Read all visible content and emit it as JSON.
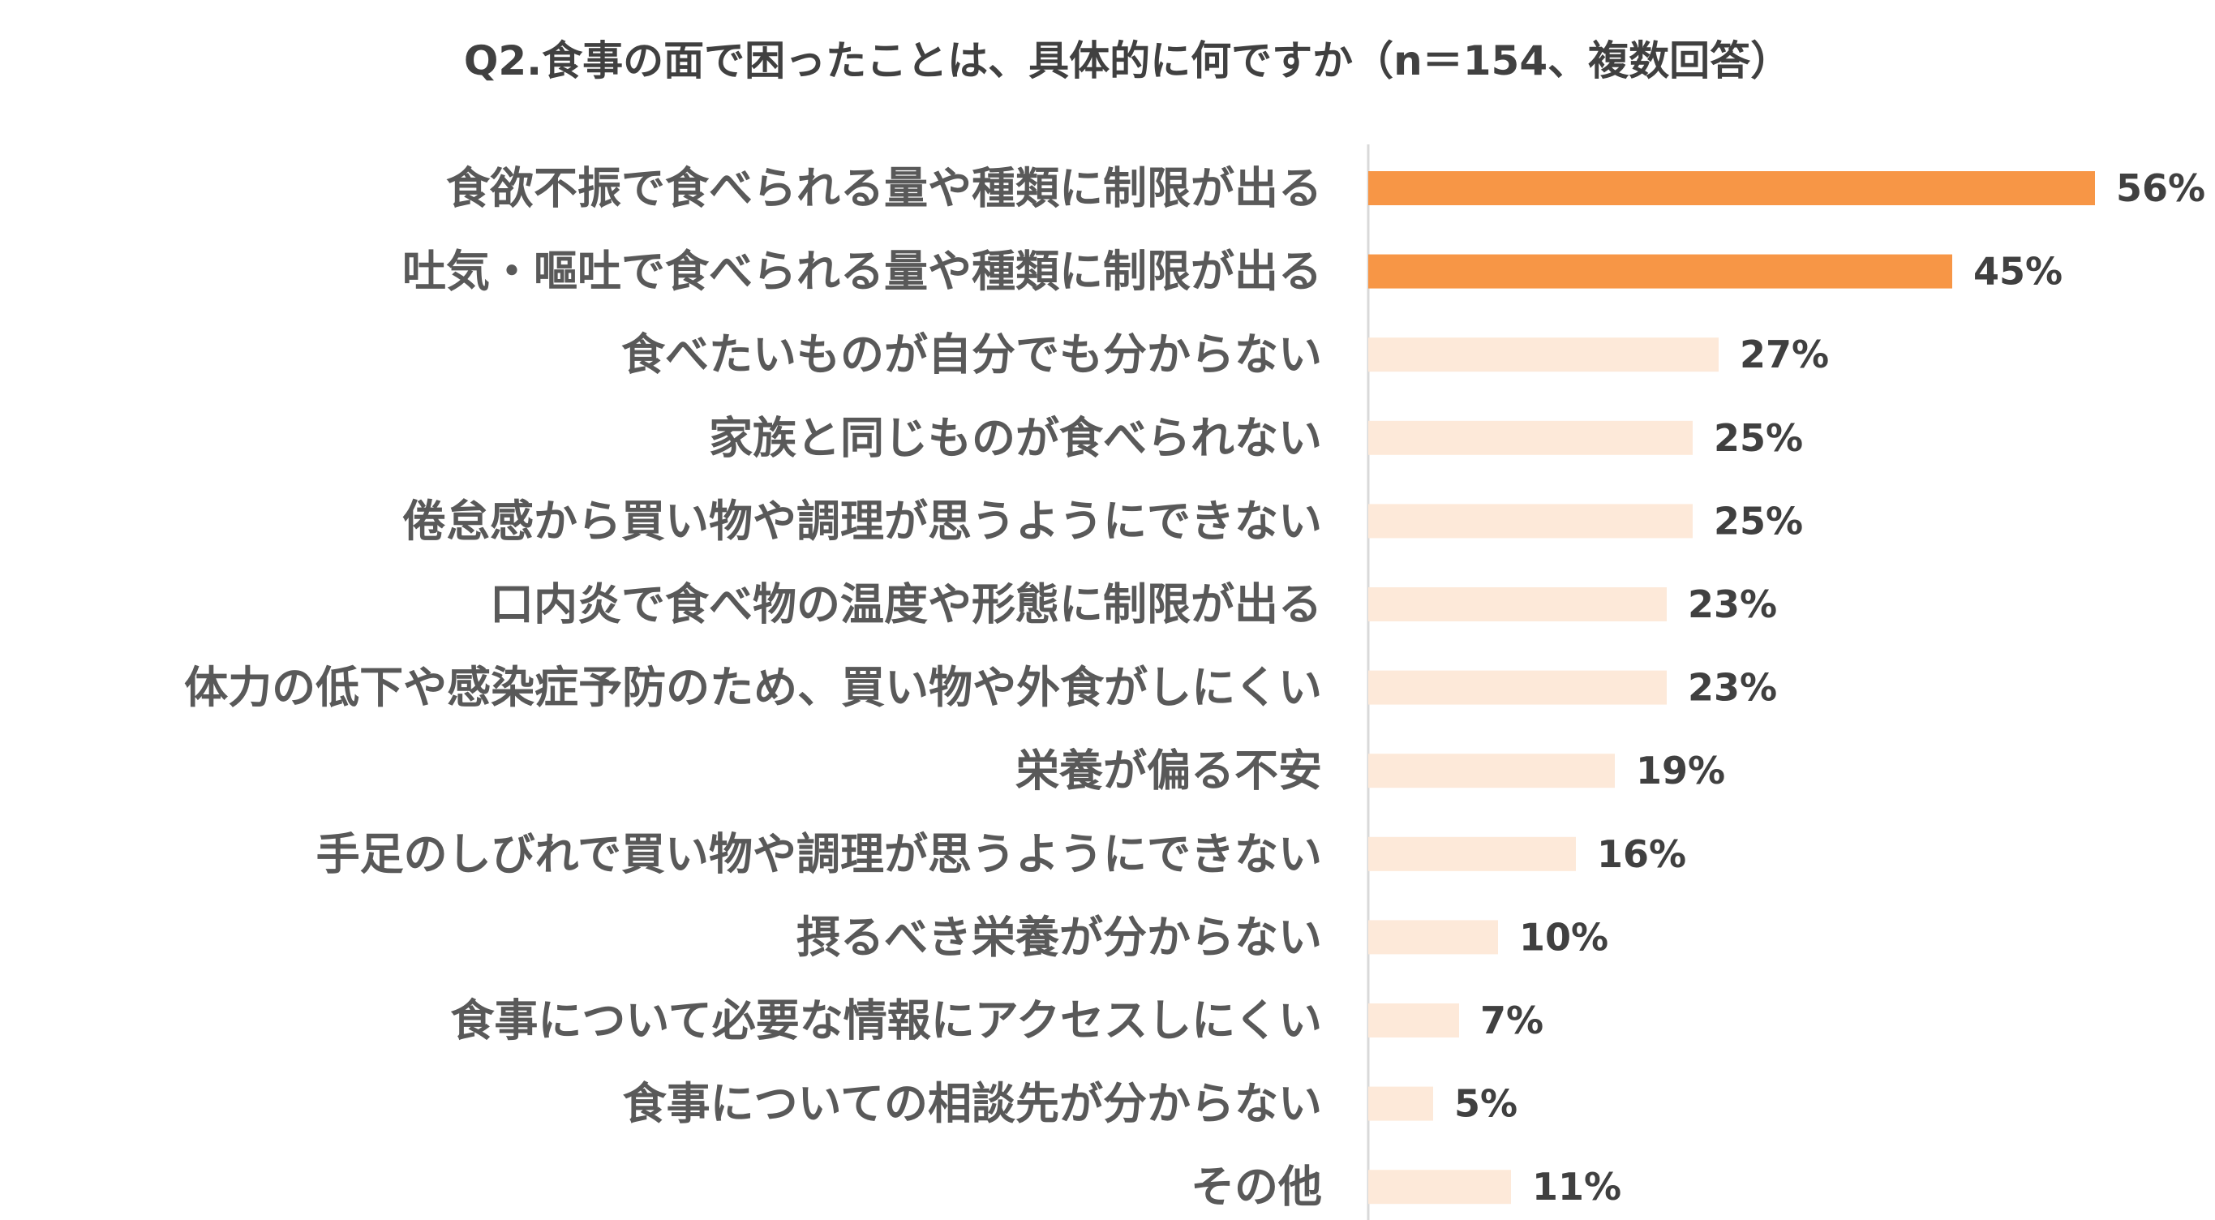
{
  "chart_data": {
    "type": "bar",
    "orientation": "horizontal",
    "title": "Q2.食事の面で困ったことは、具体的に何ですか（n＝154、複数回答）",
    "categories": [
      "食欲不振で食べられる量や種類に制限が出る",
      "吐気・嘔吐で食べられる量や種類に制限が出る",
      "食べたいものが自分でも分からない",
      "家族と同じものが食べられない",
      "倦怠感から買い物や調理が思うようにできない",
      "口内炎で食べ物の温度や形態に制限が出る",
      "体力の低下や感染症予防のため、買い物や外食がしにくい",
      "栄養が偏る不安",
      "手足のしびれで買い物や調理が思うようにできない",
      "摂るべき栄養が分からない",
      "食事について必要な情報にアクセスしにくい",
      "食事についての相談先が分からない",
      "その他"
    ],
    "values": [
      56,
      45,
      27,
      25,
      25,
      23,
      23,
      19,
      16,
      10,
      7,
      5,
      11
    ],
    "value_labels": [
      "56%",
      "45%",
      "27%",
      "25%",
      "25%",
      "23%",
      "23%",
      "19%",
      "16%",
      "10%",
      "7%",
      "5%",
      "11%"
    ],
    "unit": "%",
    "highlight_count": 2,
    "xlim": [
      0,
      60
    ],
    "grid": false,
    "legend": "none",
    "colors": {
      "highlight": "#F79646",
      "normal": "#FDE9D9",
      "axis_line": "#D9D9D9",
      "label_text": "#595959",
      "value_text": "#404040",
      "title_text": "#404040"
    }
  }
}
